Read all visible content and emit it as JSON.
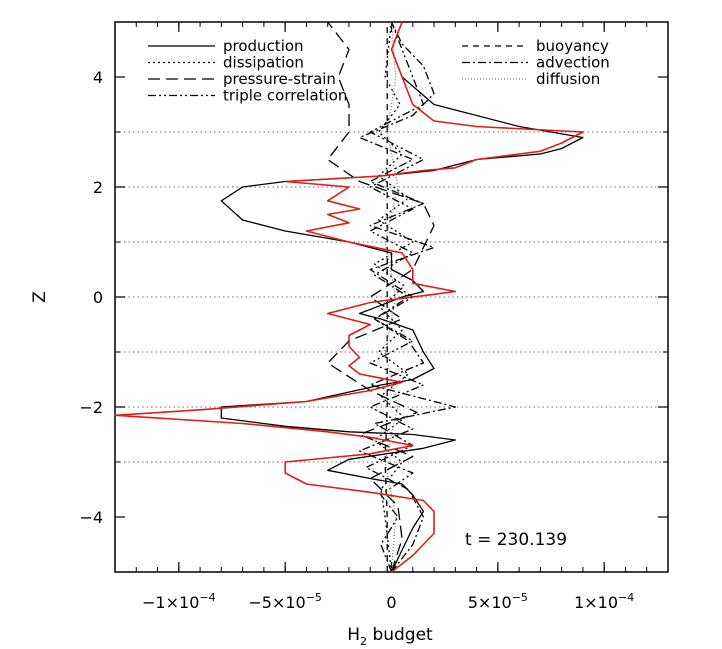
{
  "chart_data": {
    "type": "line",
    "xlabel_main": "H",
    "xlabel_sub": "2",
    "xlabel_rest": " budget",
    "ylabel": "Z",
    "xlim": [
      -0.00013,
      0.00013
    ],
    "ylim": [
      -5,
      5
    ],
    "x_ticks": [
      {
        "value": -0.0001,
        "mant": "−1×10",
        "exp": "−4"
      },
      {
        "value": -5e-05,
        "mant": "−5×10",
        "exp": "−5"
      },
      {
        "value": 0,
        "mant": "0",
        "exp": ""
      },
      {
        "value": 5e-05,
        "mant": "5×10",
        "exp": "−5"
      },
      {
        "value": 0.0001,
        "mant": "1×10",
        "exp": "−4"
      }
    ],
    "y_ticks": [
      {
        "value": -4,
        "label": "−4"
      },
      {
        "value": -2,
        "label": "−2"
      },
      {
        "value": 0,
        "label": "0"
      },
      {
        "value": 2,
        "label": "2"
      },
      {
        "value": 4,
        "label": "4"
      }
    ],
    "reference_lines_y": [
      -3,
      -2,
      -1,
      0,
      1,
      2,
      3
    ],
    "annotation": "t = 230.139",
    "series": [
      {
        "name": "production",
        "color": "#000000",
        "dash": "none",
        "points": [
          [
            0,
            -5
          ],
          [
            5e-06,
            -4.6
          ],
          [
            1e-05,
            -4.2
          ],
          [
            1.5e-05,
            -3.9
          ],
          [
            1e-05,
            -3.6
          ],
          [
            5e-06,
            -3.4
          ],
          [
            -1e-05,
            -3.3
          ],
          [
            -3e-05,
            -3.15
          ],
          [
            -2e-05,
            -2.95
          ],
          [
            1.5e-05,
            -2.75
          ],
          [
            3e-05,
            -2.6
          ],
          [
            1e-05,
            -2.5
          ],
          [
            -2e-05,
            -2.45
          ],
          [
            -5e-05,
            -2.35
          ],
          [
            -8e-05,
            -2.2
          ],
          [
            -8e-05,
            -2.0
          ],
          [
            -4e-05,
            -1.9
          ],
          [
            -5e-06,
            -1.6
          ],
          [
            1e-05,
            -1.5
          ],
          [
            2e-05,
            -1.3
          ],
          [
            1.5e-05,
            -1.0
          ],
          [
            1e-05,
            -0.6
          ],
          [
            -5e-06,
            -0.4
          ],
          [
            -1.5e-05,
            -0.3
          ],
          [
            -5e-06,
            -0.15
          ],
          [
            5e-06,
            0.0
          ],
          [
            1.5e-05,
            0.1
          ],
          [
            1e-05,
            0.3
          ],
          [
            0,
            0.5
          ],
          [
            0,
            0.8
          ],
          [
            -2e-05,
            1.0
          ],
          [
            -5e-05,
            1.2
          ],
          [
            -7e-05,
            1.4
          ],
          [
            -8e-05,
            1.75
          ],
          [
            -7e-05,
            2.0
          ],
          [
            -5e-05,
            2.1
          ],
          [
            -5e-06,
            2.2
          ],
          [
            2e-05,
            2.3
          ],
          [
            4e-05,
            2.5
          ],
          [
            7e-05,
            2.6
          ],
          [
            8e-05,
            2.7
          ],
          [
            9e-05,
            2.9
          ],
          [
            6e-05,
            3.1
          ],
          [
            2e-05,
            3.5
          ],
          [
            5e-06,
            4.0
          ],
          [
            0,
            4.5
          ],
          [
            5e-06,
            5.0
          ]
        ]
      },
      {
        "name": "dissipation",
        "color": "#000000",
        "dash": "2,3",
        "points": [
          [
            0,
            -5
          ],
          [
            -3e-06,
            -4
          ],
          [
            -5e-06,
            -3.5
          ],
          [
            5e-06,
            -3.0
          ],
          [
            -8e-06,
            -2.6
          ],
          [
            6e-06,
            -2.2
          ],
          [
            -5e-06,
            -1.8
          ],
          [
            8e-06,
            -1.4
          ],
          [
            -6e-06,
            -1.0
          ],
          [
            5e-06,
            -0.6
          ],
          [
            -5e-06,
            -0.2
          ],
          [
            6e-06,
            0.2
          ],
          [
            -8e-06,
            0.6
          ],
          [
            1e-05,
            1.0
          ],
          [
            -6e-06,
            1.4
          ],
          [
            8e-06,
            1.8
          ],
          [
            -6e-06,
            2.2
          ],
          [
            5e-06,
            2.6
          ],
          [
            -6e-06,
            3.0
          ],
          [
            4e-06,
            3.5
          ],
          [
            -3e-06,
            4.0
          ],
          [
            0,
            5.0
          ]
        ]
      },
      {
        "name": "pressure-strain",
        "color": "#000000",
        "dash": "12,6",
        "points": [
          [
            0,
            -5
          ],
          [
            5e-06,
            -4.4
          ],
          [
            3e-06,
            -3.8
          ],
          [
            -1e-05,
            -3.3
          ],
          [
            1e-05,
            -2.9
          ],
          [
            -1.5e-05,
            -2.5
          ],
          [
            1.2e-05,
            -2.1
          ],
          [
            -1e-05,
            -1.7
          ],
          [
            -3e-05,
            -1.2
          ],
          [
            -2e-05,
            -0.8
          ],
          [
            5e-06,
            -0.4
          ],
          [
            -1e-05,
            0.0
          ],
          [
            1e-05,
            0.5
          ],
          [
            1.5e-05,
            0.9
          ],
          [
            2e-05,
            1.3
          ],
          [
            1.5e-05,
            1.7
          ],
          [
            -1.5e-05,
            2.1
          ],
          [
            -3e-05,
            2.5
          ],
          [
            -2e-05,
            3.0
          ],
          [
            -2e-05,
            3.5
          ],
          [
            -2.5e-05,
            4.0
          ],
          [
            -2e-05,
            4.5
          ],
          [
            -3e-05,
            5.0
          ]
        ]
      },
      {
        "name": "triple correlation",
        "color": "#000000",
        "dash": "8,3,2,3,2,3",
        "points": [
          [
            0,
            -5
          ],
          [
            -5e-06,
            -4.5
          ],
          [
            3e-06,
            -4.0
          ],
          [
            -5e-06,
            -3.6
          ],
          [
            1e-05,
            -3.2
          ],
          [
            -1.5e-05,
            -2.8
          ],
          [
            1e-05,
            -2.4
          ],
          [
            -1e-05,
            -2.0
          ],
          [
            1.5e-05,
            -1.6
          ],
          [
            -1e-05,
            -1.2
          ],
          [
            1e-05,
            -0.8
          ],
          [
            -8e-06,
            -0.4
          ],
          [
            8e-06,
            0.0
          ],
          [
            -8e-06,
            0.4
          ],
          [
            1e-05,
            0.8
          ],
          [
            -1e-05,
            1.2
          ],
          [
            1e-05,
            1.6
          ],
          [
            -1e-05,
            2.0
          ],
          [
            1.5e-05,
            2.5
          ],
          [
            -1e-05,
            3.0
          ],
          [
            1.5e-05,
            3.5
          ],
          [
            1e-05,
            4.0
          ],
          [
            5e-06,
            4.5
          ],
          [
            0,
            5.0
          ]
        ]
      },
      {
        "name": "buoyancy",
        "color": "#000000",
        "dash": "6,5",
        "points": [
          [
            -2e-06,
            -5
          ],
          [
            -2e-06,
            -4
          ],
          [
            -3e-06,
            -3
          ],
          [
            -2e-06,
            -2
          ],
          [
            -2e-06,
            -1
          ],
          [
            -2e-06,
            0
          ],
          [
            -2e-06,
            1
          ],
          [
            -2e-06,
            2
          ],
          [
            -2e-06,
            3
          ],
          [
            -2e-06,
            4
          ],
          [
            -2e-06,
            5
          ]
        ]
      },
      {
        "name": "advection",
        "color": "#000000",
        "dash": "8,3,2,3",
        "points": [
          [
            0,
            -5
          ],
          [
            1e-05,
            -4.5
          ],
          [
            1.5e-05,
            -4.0
          ],
          [
            8e-06,
            -3.5
          ],
          [
            -1.2e-05,
            -3.1
          ],
          [
            1e-05,
            -2.7
          ],
          [
            -8e-06,
            -2.3
          ],
          [
            3e-05,
            -2.0
          ],
          [
            -1e-05,
            -1.6
          ],
          [
            1.5e-05,
            -1.2
          ],
          [
            8e-06,
            -0.8
          ],
          [
            -8e-06,
            -0.4
          ],
          [
            1e-05,
            0.0
          ],
          [
            -1e-05,
            0.5
          ],
          [
            2e-05,
            0.9
          ],
          [
            -1e-05,
            1.3
          ],
          [
            1.5e-05,
            1.7
          ],
          [
            -1e-05,
            2.1
          ],
          [
            1e-05,
            2.5
          ],
          [
            -1.5e-05,
            2.9
          ],
          [
            1e-05,
            3.3
          ],
          [
            2e-05,
            3.7
          ],
          [
            1.5e-05,
            4.2
          ],
          [
            5e-06,
            4.6
          ],
          [
            0,
            5.0
          ]
        ]
      },
      {
        "name": "diffusion",
        "color": "#777777",
        "dash": "1,2",
        "points": [
          [
            0,
            -5
          ],
          [
            2e-06,
            -4
          ],
          [
            -3e-06,
            -3
          ],
          [
            3e-06,
            -2
          ],
          [
            -3e-06,
            -1
          ],
          [
            2e-06,
            0
          ],
          [
            -3e-06,
            1
          ],
          [
            3e-06,
            2
          ],
          [
            -2e-06,
            3
          ],
          [
            2e-06,
            4
          ],
          [
            0,
            5
          ]
        ]
      },
      {
        "name": "",
        "color": "#d9201a",
        "dash": "none",
        "points": [
          [
            0,
            -5
          ],
          [
            1e-05,
            -4.7
          ],
          [
            2e-05,
            -4.3
          ],
          [
            2e-05,
            -3.9
          ],
          [
            1.5e-05,
            -3.7
          ],
          [
            -1e-05,
            -3.55
          ],
          [
            -4e-05,
            -3.4
          ],
          [
            -5e-05,
            -3.2
          ],
          [
            -5e-05,
            -3.0
          ],
          [
            -1e-05,
            -2.85
          ],
          [
            1e-05,
            -2.7
          ],
          [
            -1e-05,
            -2.55
          ],
          [
            -3e-05,
            -2.45
          ],
          [
            -7e-05,
            -2.3
          ],
          [
            -0.00013,
            -2.15
          ],
          [
            -9e-05,
            -2.05
          ],
          [
            -4e-05,
            -1.9
          ],
          [
            -1e-05,
            -1.7
          ],
          [
            5e-06,
            -1.55
          ],
          [
            -1.5e-05,
            -1.4
          ],
          [
            -2e-05,
            -1.25
          ],
          [
            -1.5e-05,
            -1.1
          ],
          [
            -2e-05,
            -0.9
          ],
          [
            -2e-05,
            -0.7
          ],
          [
            -1e-05,
            -0.5
          ],
          [
            -3e-05,
            -0.3
          ],
          [
            -1e-05,
            -0.1
          ],
          [
            2e-05,
            0.05
          ],
          [
            3e-05,
            0.1
          ],
          [
            1e-05,
            0.25
          ],
          [
            1e-05,
            0.5
          ],
          [
            5e-06,
            0.8
          ],
          [
            -2e-05,
            1.0
          ],
          [
            -4e-05,
            1.2
          ],
          [
            -2e-05,
            1.35
          ],
          [
            -3e-05,
            1.5
          ],
          [
            -1.5e-05,
            1.6
          ],
          [
            -3e-05,
            1.75
          ],
          [
            -2e-05,
            2.0
          ],
          [
            -5e-05,
            2.1
          ],
          [
            -5e-06,
            2.2
          ],
          [
            1.5e-05,
            2.3
          ],
          [
            3e-05,
            2.35
          ],
          [
            4e-05,
            2.5
          ],
          [
            6e-05,
            2.6
          ],
          [
            7e-05,
            2.65
          ],
          [
            8e-05,
            2.8
          ],
          [
            9e-05,
            3.0
          ],
          [
            4e-05,
            3.1
          ],
          [
            2e-05,
            3.2
          ],
          [
            1e-05,
            3.5
          ],
          [
            5e-06,
            4.0
          ],
          [
            0,
            4.5
          ],
          [
            5e-06,
            5.0
          ]
        ]
      }
    ],
    "legend": {
      "left": [
        "production",
        "dissipation",
        "pressure-strain",
        "triple correlation"
      ],
      "right": [
        "buoyancy",
        "advection",
        "diffusion"
      ]
    }
  }
}
